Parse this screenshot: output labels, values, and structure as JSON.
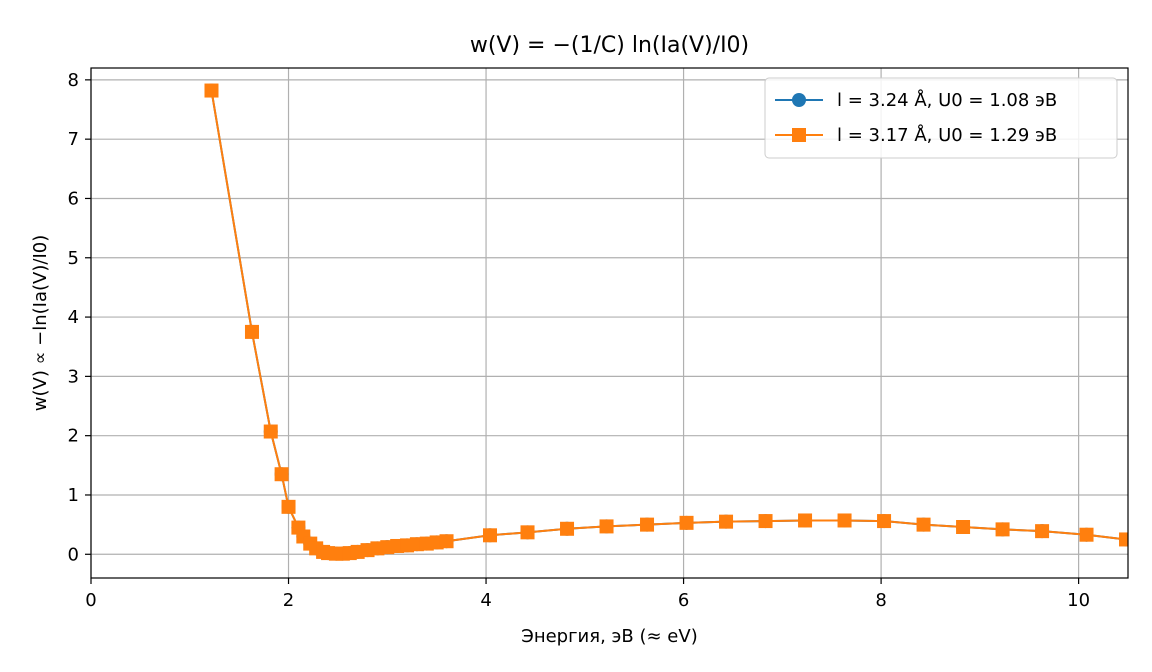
{
  "chart_data": {
    "type": "line",
    "title": "w(V) = −(1/C) ln(Ia(V)/I0)",
    "xlabel": "Энергия, эВ (≈ eV)",
    "ylabel": "w(V) ∝ −ln(Ia(V)/I0)",
    "xlim": [
      0,
      10.5
    ],
    "ylim": [
      -0.4,
      8.2
    ],
    "xticks": [
      0,
      2,
      4,
      6,
      8,
      10
    ],
    "yticks": [
      0,
      1,
      2,
      3,
      4,
      5,
      6,
      7,
      8
    ],
    "grid": true,
    "legend_position": "upper right",
    "series": [
      {
        "name": "l = 3.24 Å, U0 = 1.08 эВ",
        "color": "#1f77b4",
        "marker": "circle",
        "x": [
          1.22,
          1.63,
          1.82,
          1.93,
          2.0,
          2.1,
          2.15,
          2.22,
          2.28,
          2.35,
          2.4,
          2.48,
          2.55,
          2.62,
          2.7,
          2.8,
          2.9,
          3.0,
          3.1,
          3.2,
          3.3,
          3.4,
          3.5,
          3.6,
          4.04,
          4.42,
          4.82,
          5.22,
          5.63,
          6.03,
          6.43,
          6.83,
          7.23,
          7.63,
          8.03,
          8.43,
          8.83,
          9.23,
          9.63,
          10.08,
          10.48
        ],
        "y": [
          7.82,
          3.75,
          2.07,
          1.35,
          0.8,
          0.45,
          0.3,
          0.18,
          0.1,
          0.04,
          0.02,
          0.01,
          0.01,
          0.02,
          0.04,
          0.07,
          0.1,
          0.12,
          0.14,
          0.15,
          0.17,
          0.18,
          0.2,
          0.22,
          0.32,
          0.37,
          0.43,
          0.47,
          0.5,
          0.53,
          0.55,
          0.56,
          0.57,
          0.57,
          0.56,
          0.5,
          0.46,
          0.42,
          0.39,
          0.33,
          0.25
        ]
      },
      {
        "name": "l = 3.17 Å, U0 = 1.29 эВ",
        "color": "#ff7f0e",
        "marker": "square",
        "x": [
          1.22,
          1.63,
          1.82,
          1.93,
          2.0,
          2.1,
          2.15,
          2.22,
          2.28,
          2.35,
          2.4,
          2.48,
          2.55,
          2.62,
          2.7,
          2.8,
          2.9,
          3.0,
          3.1,
          3.2,
          3.3,
          3.4,
          3.5,
          3.6,
          4.04,
          4.42,
          4.82,
          5.22,
          5.63,
          6.03,
          6.43,
          6.83,
          7.23,
          7.63,
          8.03,
          8.43,
          8.83,
          9.23,
          9.63,
          10.08,
          10.48
        ],
        "y": [
          7.82,
          3.75,
          2.07,
          1.35,
          0.8,
          0.45,
          0.3,
          0.18,
          0.1,
          0.04,
          0.02,
          0.01,
          0.01,
          0.02,
          0.04,
          0.07,
          0.1,
          0.12,
          0.14,
          0.15,
          0.17,
          0.18,
          0.2,
          0.22,
          0.32,
          0.37,
          0.43,
          0.47,
          0.5,
          0.53,
          0.55,
          0.56,
          0.57,
          0.57,
          0.56,
          0.5,
          0.46,
          0.42,
          0.39,
          0.33,
          0.25
        ]
      }
    ]
  }
}
